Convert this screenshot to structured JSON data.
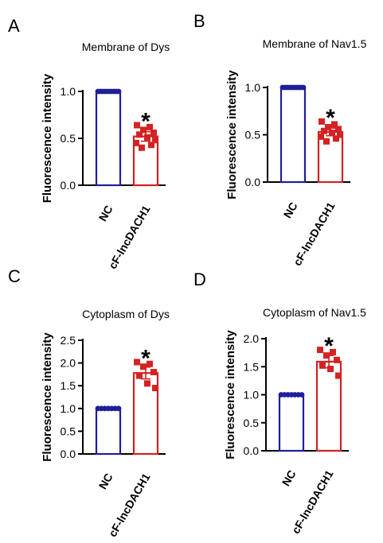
{
  "chart_data": [
    {
      "panel": "A",
      "type": "bar",
      "title": "Membrane of Dys",
      "ylabel": "Fluorescence intensity",
      "xlabel": "",
      "categories": [
        "NC",
        "cF-lncDACH1"
      ],
      "ylim": [
        0,
        1.0
      ],
      "yticks": [
        "0.0",
        "0.5",
        "1.0"
      ],
      "grid": false,
      "legend": "none",
      "series": [
        {
          "values": [
            1.0,
            0.52
          ],
          "errors": [
            0.0,
            0.05
          ]
        }
      ],
      "points": [
        [
          1.0,
          1.0,
          1.0,
          1.0,
          1.0,
          1.0,
          1.0,
          1.0,
          1.0,
          1.0
        ],
        [
          0.64,
          0.62,
          0.59,
          0.56,
          0.54,
          0.51,
          0.48,
          0.45,
          0.43,
          0.4
        ]
      ],
      "significance": [
        "",
        "*"
      ],
      "colors": [
        "#1f1f9a",
        "#d42222"
      ]
    },
    {
      "panel": "B",
      "type": "bar",
      "title": "Membrane of Nav1.5",
      "ylabel": "Fluorescence intensity",
      "xlabel": "",
      "categories": [
        "NC",
        "cF-lncDACH1"
      ],
      "ylim": [
        0,
        1.0
      ],
      "yticks": [
        "0.0",
        "0.5",
        "1.0"
      ],
      "grid": false,
      "legend": "none",
      "series": [
        {
          "values": [
            1.0,
            0.53
          ],
          "errors": [
            0.0,
            0.04
          ]
        }
      ],
      "points": [
        [
          1.0,
          1.0,
          1.0,
          1.0,
          1.0,
          1.0,
          1.0,
          1.0,
          1.0,
          1.0
        ],
        [
          0.64,
          0.61,
          0.58,
          0.56,
          0.54,
          0.52,
          0.5,
          0.48,
          0.46,
          0.43
        ]
      ],
      "significance": [
        "",
        "*"
      ],
      "colors": [
        "#1f1f9a",
        "#d42222"
      ]
    },
    {
      "panel": "C",
      "type": "bar",
      "title": "Cytoplasm of Dys",
      "ylabel": "Fluorescence intensity",
      "xlabel": "",
      "categories": [
        "NC",
        "cF-lncDACH1"
      ],
      "ylim": [
        0,
        2.5
      ],
      "yticks": [
        "0.0",
        "0.5",
        "1.0",
        "1.5",
        "2.0",
        "2.5"
      ],
      "grid": false,
      "legend": "none",
      "series": [
        {
          "values": [
            1.0,
            1.78
          ],
          "errors": [
            0.0,
            0.13
          ]
        }
      ],
      "points": [
        [
          1.0,
          1.0,
          1.0,
          1.0,
          1.0,
          1.0,
          1.0
        ],
        [
          2.02,
          1.98,
          1.92,
          1.8,
          1.72,
          1.55,
          1.45
        ]
      ],
      "significance": [
        "",
        "*"
      ],
      "colors": [
        "#1f1f9a",
        "#d42222"
      ]
    },
    {
      "panel": "D",
      "type": "bar",
      "title": "Cytoplasm of Nav1.5",
      "ylabel": "Fluorescence intensity",
      "xlabel": "",
      "categories": [
        "NC",
        "cF-lncDACH1"
      ],
      "ylim": [
        0,
        2.0
      ],
      "yticks": [
        "0.0",
        "0.5",
        "1.0",
        "1.5",
        "2.0"
      ],
      "grid": false,
      "legend": "none",
      "series": [
        {
          "values": [
            1.0,
            1.59
          ],
          "errors": [
            0.0,
            0.11
          ]
        }
      ],
      "points": [
        [
          1.0,
          1.0,
          1.0,
          1.0,
          1.0,
          1.0,
          1.0
        ],
        [
          1.8,
          1.76,
          1.7,
          1.62,
          1.52,
          1.46,
          1.34
        ]
      ],
      "significance": [
        "",
        "*"
      ],
      "colors": [
        "#1f1f9a",
        "#d42222"
      ]
    }
  ]
}
